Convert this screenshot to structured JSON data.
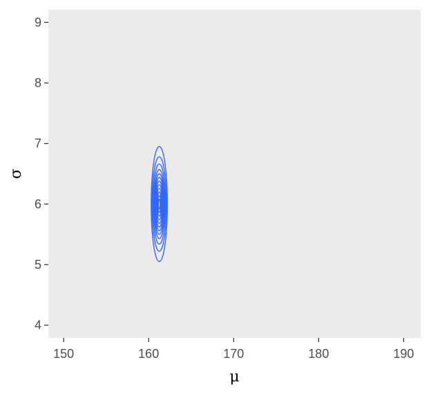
{
  "chart_data": {
    "type": "contour",
    "title": "",
    "xlabel": "μ",
    "ylabel": "σ",
    "xlim": [
      148.2,
      192
    ],
    "ylim": [
      3.79,
      9.21
    ],
    "x_ticks": [
      150,
      160,
      170,
      180,
      190
    ],
    "y_ticks": [
      4,
      5,
      6,
      7,
      8,
      9
    ],
    "grid": false,
    "panel_background": "#ebebeb",
    "series": [
      {
        "color": "#3366ff",
        "center": {
          "mu": 161.25,
          "sigma": 6.0
        },
        "contour_half_widths": [
          {
            "mu": 0.95,
            "sigma": 0.95
          },
          {
            "mu": 0.85,
            "sigma": 0.78
          },
          {
            "mu": 0.75,
            "sigma": 0.66
          },
          {
            "mu": 0.66,
            "sigma": 0.57
          },
          {
            "mu": 0.58,
            "sigma": 0.5
          },
          {
            "mu": 0.51,
            "sigma": 0.44
          },
          {
            "mu": 0.44,
            "sigma": 0.38
          },
          {
            "mu": 0.38,
            "sigma": 0.32
          },
          {
            "mu": 0.31,
            "sigma": 0.26
          },
          {
            "mu": 0.24,
            "sigma": 0.2
          },
          {
            "mu": 0.17,
            "sigma": 0.14
          },
          {
            "mu": 0.1,
            "sigma": 0.08
          }
        ]
      }
    ]
  }
}
